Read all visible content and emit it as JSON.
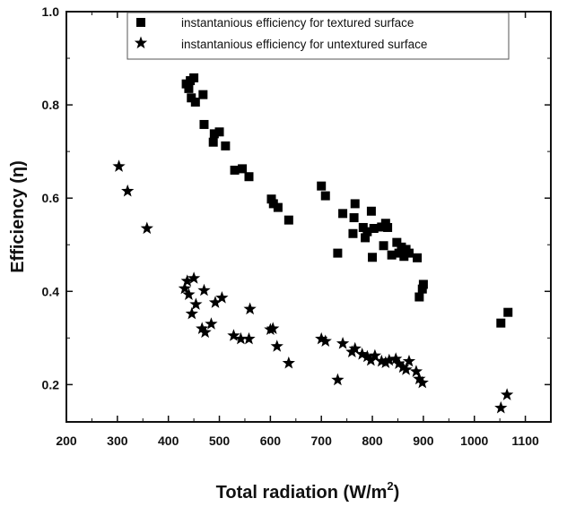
{
  "chart_data": {
    "type": "scatter",
    "title": "",
    "xlabel": "Total radiation (W/m",
    "xlabel_superscript": "2",
    "xlabel_suffix": ")",
    "ylabel": "Efficiency (η)",
    "xlim": [
      200,
      1150
    ],
    "ylim": [
      0.12,
      1.0
    ],
    "x_ticks": [
      200,
      300,
      400,
      500,
      600,
      700,
      800,
      900,
      1000,
      1100
    ],
    "y_ticks": [
      0.2,
      0.4,
      0.6,
      0.8,
      1.0
    ],
    "y_tick_labels": [
      "0.2",
      "0.4",
      "0.6",
      "0.8",
      "1.0"
    ],
    "grid": false,
    "legend_placement": "top-center",
    "series": [
      {
        "name": "instantanious efficiency for textured surface",
        "marker": "square",
        "color": "#000000",
        "points": [
          [
            435,
            0.845
          ],
          [
            440,
            0.835
          ],
          [
            443,
            0.852
          ],
          [
            450,
            0.858
          ],
          [
            445,
            0.815
          ],
          [
            453,
            0.806
          ],
          [
            468,
            0.822
          ],
          [
            470,
            0.758
          ],
          [
            488,
            0.72
          ],
          [
            490,
            0.738
          ],
          [
            500,
            0.742
          ],
          [
            512,
            0.712
          ],
          [
            530,
            0.66
          ],
          [
            545,
            0.663
          ],
          [
            558,
            0.646
          ],
          [
            602,
            0.598
          ],
          [
            606,
            0.588
          ],
          [
            615,
            0.58
          ],
          [
            636,
            0.553
          ],
          [
            700,
            0.626
          ],
          [
            708,
            0.605
          ],
          [
            732,
            0.482
          ],
          [
            742,
            0.567
          ],
          [
            762,
            0.524
          ],
          [
            764,
            0.558
          ],
          [
            766,
            0.588
          ],
          [
            782,
            0.537
          ],
          [
            786,
            0.515
          ],
          [
            790,
            0.528
          ],
          [
            798,
            0.572
          ],
          [
            800,
            0.473
          ],
          [
            803,
            0.535
          ],
          [
            818,
            0.538
          ],
          [
            822,
            0.498
          ],
          [
            826,
            0.546
          ],
          [
            830,
            0.537
          ],
          [
            838,
            0.478
          ],
          [
            848,
            0.505
          ],
          [
            852,
            0.482
          ],
          [
            857,
            0.495
          ],
          [
            862,
            0.475
          ],
          [
            866,
            0.49
          ],
          [
            872,
            0.482
          ],
          [
            888,
            0.472
          ],
          [
            892,
            0.388
          ],
          [
            898,
            0.405
          ],
          [
            900,
            0.415
          ],
          [
            1052,
            0.332
          ],
          [
            1066,
            0.355
          ]
        ]
      },
      {
        "name": "instantanious efficiency for untextured surface",
        "marker": "star",
        "color": "#000000",
        "points": [
          [
            303,
            0.668
          ],
          [
            320,
            0.615
          ],
          [
            358,
            0.535
          ],
          [
            432,
            0.406
          ],
          [
            437,
            0.422
          ],
          [
            440,
            0.393
          ],
          [
            446,
            0.352
          ],
          [
            450,
            0.428
          ],
          [
            454,
            0.372
          ],
          [
            466,
            0.32
          ],
          [
            470,
            0.402
          ],
          [
            472,
            0.312
          ],
          [
            484,
            0.33
          ],
          [
            492,
            0.376
          ],
          [
            505,
            0.386
          ],
          [
            528,
            0.305
          ],
          [
            542,
            0.298
          ],
          [
            558,
            0.298
          ],
          [
            560,
            0.362
          ],
          [
            600,
            0.318
          ],
          [
            605,
            0.32
          ],
          [
            613,
            0.282
          ],
          [
            636,
            0.246
          ],
          [
            700,
            0.298
          ],
          [
            708,
            0.293
          ],
          [
            732,
            0.21
          ],
          [
            742,
            0.288
          ],
          [
            760,
            0.27
          ],
          [
            766,
            0.277
          ],
          [
            780,
            0.265
          ],
          [
            790,
            0.26
          ],
          [
            797,
            0.252
          ],
          [
            805,
            0.262
          ],
          [
            818,
            0.25
          ],
          [
            826,
            0.247
          ],
          [
            833,
            0.252
          ],
          [
            846,
            0.255
          ],
          [
            852,
            0.245
          ],
          [
            860,
            0.237
          ],
          [
            866,
            0.232
          ],
          [
            872,
            0.25
          ],
          [
            886,
            0.228
          ],
          [
            892,
            0.212
          ],
          [
            898,
            0.204
          ],
          [
            1052,
            0.15
          ],
          [
            1064,
            0.178
          ]
        ]
      }
    ]
  }
}
